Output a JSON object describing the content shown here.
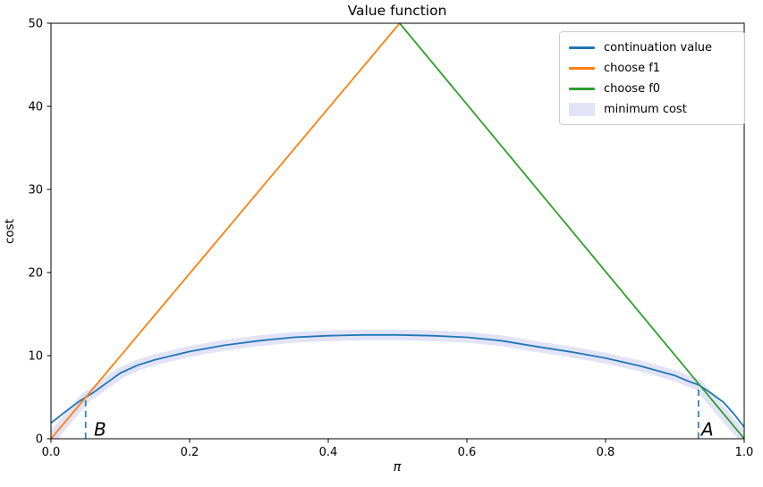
{
  "chart_data": {
    "type": "line",
    "title": "Value function",
    "xlabel": "π",
    "ylabel": "cost",
    "xlim": [
      0,
      1
    ],
    "ylim": [
      0,
      50
    ],
    "grid": false,
    "background": "#ffffff",
    "spine_color": "#000000",
    "legend": {
      "position": "upper right"
    },
    "x_ticks": {
      "values": [
        0,
        0.2,
        0.4,
        0.6,
        0.8,
        1.0
      ],
      "labels": [
        "0.0",
        "0.2",
        "0.4",
        "0.6",
        "0.8",
        "1.0"
      ]
    },
    "y_ticks": {
      "values": [
        0,
        10,
        20,
        30,
        40,
        50
      ],
      "labels": [
        "0",
        "10",
        "20",
        "30",
        "40",
        "50"
      ]
    },
    "series": [
      {
        "name": "continuation value",
        "color": "#1f77b4",
        "style": "line",
        "width": 1.8,
        "points": [
          [
            0,
            1.9
          ],
          [
            0.01,
            2.55
          ],
          [
            0.02,
            3.2
          ],
          [
            0.03,
            3.85
          ],
          [
            0.04,
            4.45
          ],
          [
            0.05,
            5.0
          ],
          [
            0.06,
            5.5
          ],
          [
            0.08,
            6.7
          ],
          [
            0.1,
            7.9
          ],
          [
            0.125,
            8.85
          ],
          [
            0.15,
            9.5
          ],
          [
            0.175,
            10.0
          ],
          [
            0.2,
            10.5
          ],
          [
            0.25,
            11.25
          ],
          [
            0.3,
            11.8
          ],
          [
            0.35,
            12.2
          ],
          [
            0.4,
            12.4
          ],
          [
            0.45,
            12.5
          ],
          [
            0.5,
            12.5
          ],
          [
            0.55,
            12.4
          ],
          [
            0.6,
            12.2
          ],
          [
            0.65,
            11.8
          ],
          [
            0.7,
            11.1
          ],
          [
            0.75,
            10.45
          ],
          [
            0.8,
            9.7
          ],
          [
            0.85,
            8.75
          ],
          [
            0.9,
            7.6
          ],
          [
            0.92,
            6.9
          ],
          [
            0.934,
            6.5
          ],
          [
            0.95,
            5.6
          ],
          [
            0.97,
            4.4
          ],
          [
            0.985,
            3.0
          ],
          [
            1.0,
            1.4
          ]
        ]
      },
      {
        "name": "choose f1",
        "color": "#ff7f0e",
        "style": "line",
        "width": 1.8,
        "points": [
          [
            0,
            0
          ],
          [
            0.503,
            50
          ]
        ]
      },
      {
        "name": "choose f0",
        "color": "#2ca02c",
        "style": "line",
        "width": 1.8,
        "points": [
          [
            0.503,
            50
          ],
          [
            1,
            0
          ]
        ]
      },
      {
        "name": "minimum cost",
        "color": "#e3e3f8",
        "style": "band",
        "width": 12,
        "points": [
          [
            0,
            0
          ],
          [
            0.05,
            5.0
          ],
          [
            0.06,
            5.5
          ],
          [
            0.08,
            6.7
          ],
          [
            0.1,
            7.9
          ],
          [
            0.125,
            8.85
          ],
          [
            0.15,
            9.5
          ],
          [
            0.175,
            10.0
          ],
          [
            0.2,
            10.5
          ],
          [
            0.25,
            11.25
          ],
          [
            0.3,
            11.8
          ],
          [
            0.35,
            12.2
          ],
          [
            0.4,
            12.4
          ],
          [
            0.45,
            12.5
          ],
          [
            0.5,
            12.5
          ],
          [
            0.55,
            12.4
          ],
          [
            0.6,
            12.2
          ],
          [
            0.65,
            11.8
          ],
          [
            0.7,
            11.1
          ],
          [
            0.75,
            10.45
          ],
          [
            0.8,
            9.7
          ],
          [
            0.85,
            8.75
          ],
          [
            0.9,
            7.6
          ],
          [
            0.92,
            6.9
          ],
          [
            0.934,
            6.5
          ],
          [
            1.0,
            0
          ]
        ]
      }
    ],
    "guide_lines": [
      {
        "x": 0.05,
        "y_top": 5.0,
        "color": "#1f77b4",
        "dash": "7 5",
        "width": 1.8
      },
      {
        "x": 0.934,
        "y_top": 6.5,
        "color": "#1f77b4",
        "dash": "7 5",
        "width": 1.8
      }
    ],
    "annotations": [
      {
        "text": "B",
        "x": 0.062,
        "y": 0.35
      },
      {
        "text": "A",
        "x": 0.938,
        "y": 0.35
      }
    ]
  }
}
